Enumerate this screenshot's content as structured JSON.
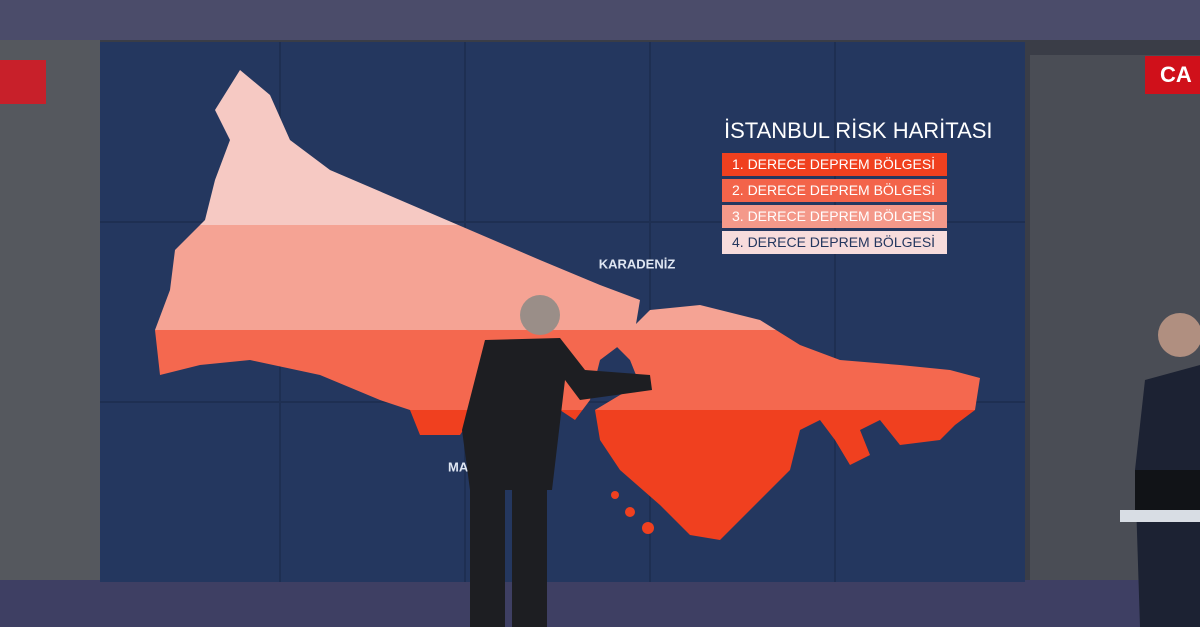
{
  "header": {
    "title": "İSTANBUL RİSK HARİTASI"
  },
  "legend": [
    {
      "label": "1. DERECE DEPREM BÖLGESİ",
      "color": "#f0401f",
      "text_color": "#ffffff"
    },
    {
      "label": "2. DERECE DEPREM BÖLGESİ",
      "color": "#f3644a",
      "text_color": "#ffffff"
    },
    {
      "label": "3. DERECE DEPREM BÖLGESİ",
      "color": "#f4998a",
      "text_color": "#ffffff"
    },
    {
      "label": "4. DERECE DEPREM BÖLGESİ",
      "color": "#f7dcdc",
      "text_color": "#24375f"
    }
  ],
  "map_labels": {
    "north_sea": "KARADENİZ",
    "south_sea": "MA"
  },
  "channel_logo": "CA"
}
